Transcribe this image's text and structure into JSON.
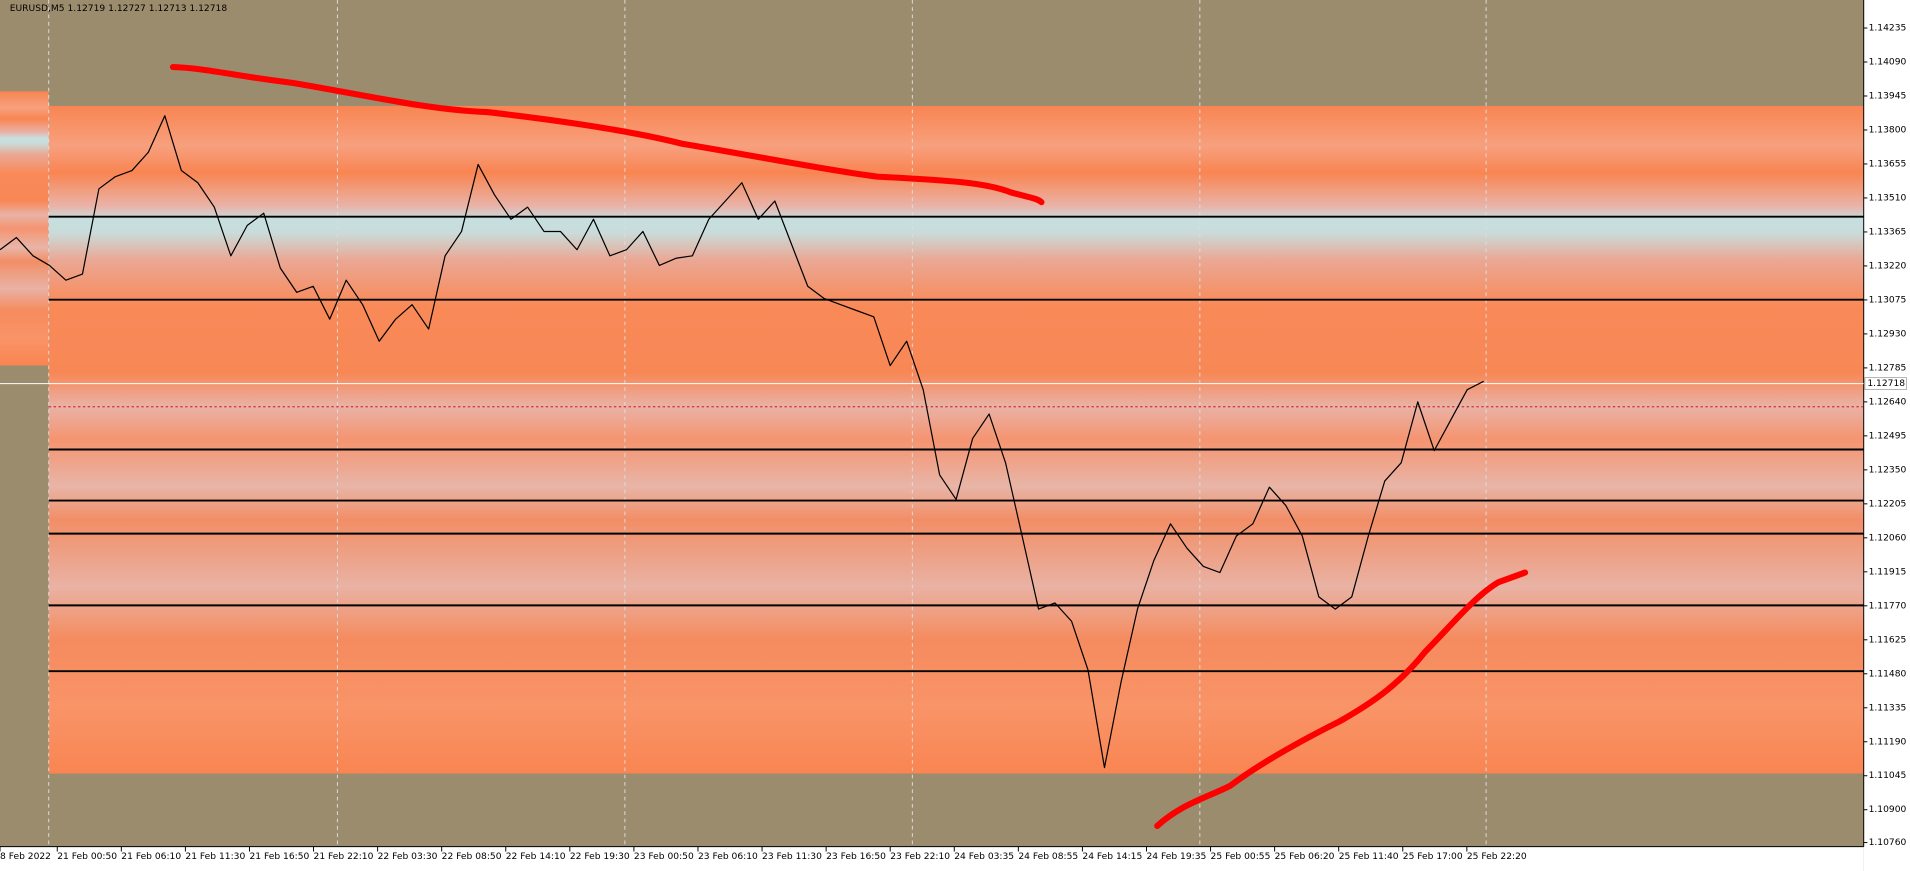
{
  "chart_data": {
    "type": "line",
    "title": "EURUSD,M5  1.12719 1.12727 1.12713 1.12718",
    "current_price": {
      "value": 1.12718,
      "label": "1.12718"
    },
    "ask_line": 1.12619,
    "ylim": [
      1.1074,
      1.1436
    ],
    "yticks": [
      1.14235,
      {
        "value": 1.1409,
        "label": "1.14090"
      },
      1.13945,
      {
        "value": 1.138,
        "label": "1.13800"
      },
      1.13655,
      {
        "value": 1.1351,
        "label": "1.13510"
      },
      1.13365,
      {
        "value": 1.1322,
        "label": "1.13220"
      },
      1.13075,
      {
        "value": 1.1293,
        "label": "1.12930"
      },
      1.12785,
      {
        "value": 1.1264,
        "label": "1.12640"
      },
      1.12495,
      {
        "value": 1.1235,
        "label": "1.12350"
      },
      1.12205,
      {
        "value": 1.1206,
        "label": "1.12060"
      },
      1.11915,
      {
        "value": 1.1177,
        "label": "1.11770"
      },
      1.11625,
      {
        "value": 1.1148,
        "label": "1.11480"
      },
      1.11335,
      {
        "value": 1.1119,
        "label": "1.11190"
      },
      1.11045,
      {
        "value": 1.109,
        "label": "1.10900"
      },
      {
        "value": 1.1076,
        "label": "1.10760"
      }
    ],
    "xticks": [
      "8 Feb 2022",
      "21 Feb 00:50",
      "21 Feb 06:10",
      "21 Feb 11:30",
      "21 Feb 16:50",
      "21 Feb 22:10",
      "22 Feb 03:30",
      "22 Feb 08:50",
      "22 Feb 14:10",
      "22 Feb 19:30",
      "23 Feb 00:50",
      "23 Feb 06:10",
      "23 Feb 11:30",
      "23 Feb 16:50",
      "23 Feb 22:10",
      "24 Feb 03:35",
      "24 Feb 08:55",
      "24 Feb 14:15",
      "24 Feb 19:35",
      "25 Feb 00:55",
      "25 Feb 06:20",
      "25 Feb 11:40",
      "25 Feb 17:00",
      "25 Feb 22:20"
    ],
    "levels": [
      1.1343,
      1.13076,
      1.12437,
      1.12219,
      1.12078,
      1.11772,
      1.11491
    ],
    "series": [
      {
        "color": "#000000",
        "values": [
          1.13289,
          1.13341,
          1.13263,
          1.13222,
          1.13159,
          1.13185,
          1.13549,
          1.13601,
          1.13627,
          1.13705,
          1.13861,
          1.13627,
          1.13575,
          1.13471,
          1.13263,
          1.13393,
          1.13445,
          1.13211,
          1.13107,
          1.13133,
          1.12993,
          1.13159,
          1.13055,
          1.12899,
          1.12993,
          1.13055,
          1.12951,
          1.13263,
          1.13367,
          1.13653,
          1.13523,
          1.13419,
          1.13471,
          1.13367,
          1.13367,
          1.13289,
          1.13419,
          1.13263,
          1.13289,
          1.13367,
          1.13222,
          1.13253,
          1.13263,
          1.13419,
          1.13497,
          1.13575,
          1.13419,
          1.13497,
          1.13315,
          1.13133,
          1.13081,
          1.13055,
          1.13029,
          1.13003,
          1.12795,
          1.12899,
          1.12692,
          1.12328,
          1.12224,
          1.12484,
          1.12588,
          1.1238,
          1.12068,
          1.11756,
          1.11782,
          1.11704,
          1.11496,
          1.1108,
          1.11444,
          1.11756,
          1.11964,
          1.1212,
          1.12016,
          1.11938,
          1.11912,
          1.12068,
          1.1212,
          1.12276,
          1.12198,
          1.12068,
          1.11808,
          1.11756,
          1.11808,
          1.12068,
          1.12302,
          1.1238,
          1.1264,
          1.12432,
          1.12562,
          1.12692,
          1.12728
        ]
      }
    ]
  }
}
